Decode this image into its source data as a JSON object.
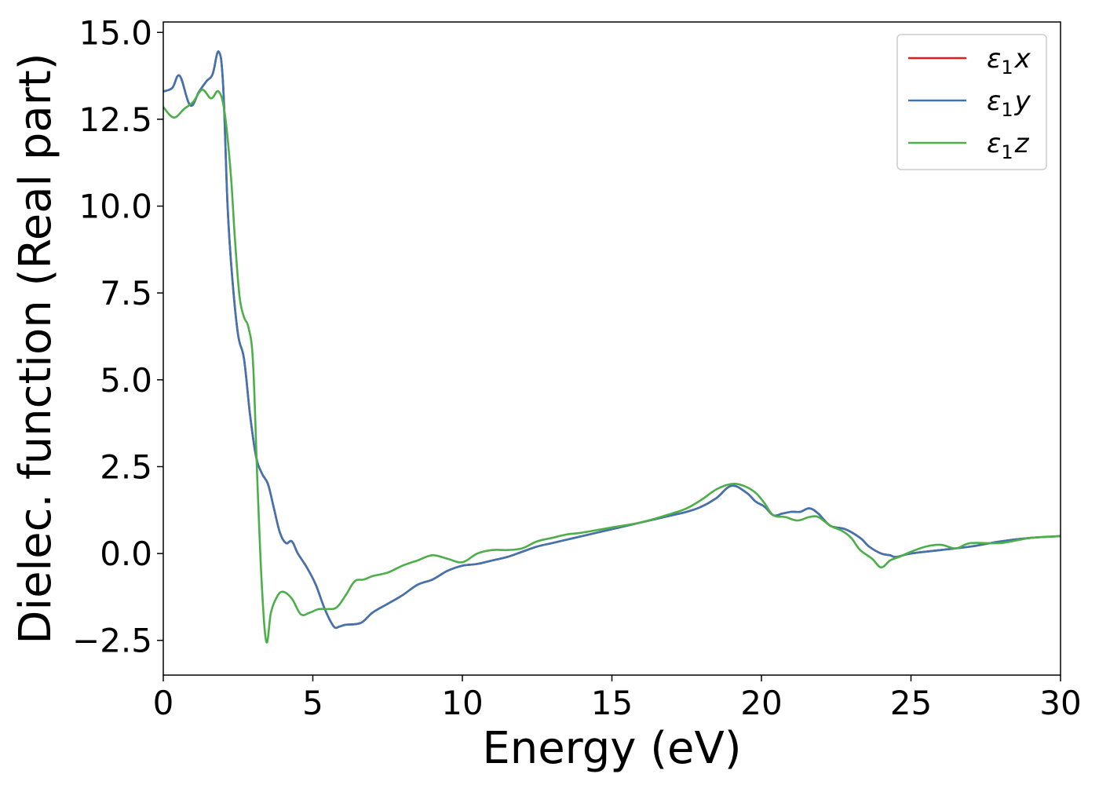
{
  "chart_data": {
    "type": "line",
    "title": "",
    "xlabel": "Energy (eV)",
    "ylabel": "Dielec. function (Real part)",
    "xlim": [
      0,
      30
    ],
    "ylim": [
      -3.5,
      15.3
    ],
    "xticks": [
      0,
      5,
      10,
      15,
      20,
      25,
      30
    ],
    "xtick_labels": [
      "0",
      "5",
      "10",
      "15",
      "20",
      "25",
      "30"
    ],
    "yticks": [
      -2.5,
      0.0,
      2.5,
      5.0,
      7.5,
      10.0,
      12.5,
      15.0
    ],
    "ytick_labels": [
      "−2.5",
      "0.0",
      "2.5",
      "5.0",
      "7.5",
      "10.0",
      "12.5",
      "15.0"
    ],
    "grid": false,
    "legend_position": "top-right",
    "series": [
      {
        "name_base": "ε",
        "name_sub": "1",
        "name_tail": "x",
        "color": "#e41a1c",
        "x": [
          0,
          0.3,
          0.55,
          0.9,
          1.2,
          1.45,
          1.65,
          1.85,
          2.0,
          2.15,
          2.3,
          2.5,
          2.7,
          2.9,
          3.1,
          3.3,
          3.5,
          3.7,
          3.9,
          4.1,
          4.3,
          4.5,
          4.8,
          5.1,
          5.4,
          5.7,
          5.9,
          6.1,
          6.6,
          7.0,
          7.5,
          8.0,
          8.5,
          9.0,
          9.5,
          10.0,
          10.5,
          11.0,
          11.5,
          12.0,
          12.5,
          13.0,
          13.5,
          14.0,
          15.0,
          16.0,
          17.0,
          17.5,
          18.0,
          18.5,
          19.0,
          19.5,
          19.8,
          20.1,
          20.4,
          20.7,
          21.0,
          21.3,
          21.6,
          21.9,
          22.3,
          22.8,
          23.3,
          23.6,
          24.0,
          24.3,
          24.5,
          25.0,
          26.0,
          27.0,
          28.0,
          29.0,
          30.0
        ],
        "y": [
          13.3,
          13.4,
          13.75,
          12.9,
          13.3,
          13.6,
          13.8,
          14.45,
          13.5,
          10.0,
          8.0,
          6.3,
          5.6,
          4.0,
          2.8,
          2.3,
          2.0,
          1.3,
          0.6,
          0.3,
          0.35,
          0.0,
          -0.4,
          -0.9,
          -1.6,
          -2.1,
          -2.1,
          -2.05,
          -2.0,
          -1.7,
          -1.45,
          -1.2,
          -0.9,
          -0.75,
          -0.5,
          -0.35,
          -0.3,
          -0.2,
          -0.1,
          0.05,
          0.2,
          0.3,
          0.4,
          0.5,
          0.7,
          0.9,
          1.1,
          1.2,
          1.35,
          1.6,
          1.95,
          1.75,
          1.5,
          1.35,
          1.1,
          1.15,
          1.2,
          1.2,
          1.3,
          1.15,
          0.8,
          0.7,
          0.45,
          0.2,
          0.0,
          -0.05,
          -0.1,
          0.0,
          0.1,
          0.2,
          0.35,
          0.45,
          0.5
        ]
      },
      {
        "name_base": "ε",
        "name_sub": "1",
        "name_tail": "y",
        "color": "#3f74b0",
        "x": [
          0,
          0.3,
          0.55,
          0.9,
          1.2,
          1.45,
          1.65,
          1.85,
          2.0,
          2.15,
          2.3,
          2.5,
          2.7,
          2.9,
          3.1,
          3.3,
          3.5,
          3.7,
          3.9,
          4.1,
          4.3,
          4.5,
          4.8,
          5.1,
          5.4,
          5.7,
          5.9,
          6.1,
          6.6,
          7.0,
          7.5,
          8.0,
          8.5,
          9.0,
          9.5,
          10.0,
          10.5,
          11.0,
          11.5,
          12.0,
          12.5,
          13.0,
          13.5,
          14.0,
          15.0,
          16.0,
          17.0,
          17.5,
          18.0,
          18.5,
          19.0,
          19.5,
          19.8,
          20.1,
          20.4,
          20.7,
          21.0,
          21.3,
          21.6,
          21.9,
          22.3,
          22.8,
          23.3,
          23.6,
          24.0,
          24.3,
          24.5,
          25.0,
          26.0,
          27.0,
          28.0,
          29.0,
          30.0
        ],
        "y": [
          13.3,
          13.4,
          13.75,
          12.9,
          13.3,
          13.6,
          13.8,
          14.45,
          13.5,
          10.0,
          8.0,
          6.3,
          5.6,
          4.0,
          2.8,
          2.3,
          2.0,
          1.3,
          0.6,
          0.3,
          0.35,
          0.0,
          -0.4,
          -0.9,
          -1.6,
          -2.1,
          -2.1,
          -2.05,
          -2.0,
          -1.7,
          -1.45,
          -1.2,
          -0.9,
          -0.75,
          -0.5,
          -0.35,
          -0.3,
          -0.2,
          -0.1,
          0.05,
          0.2,
          0.3,
          0.4,
          0.5,
          0.7,
          0.9,
          1.1,
          1.2,
          1.35,
          1.6,
          1.95,
          1.75,
          1.5,
          1.35,
          1.1,
          1.15,
          1.2,
          1.2,
          1.3,
          1.15,
          0.8,
          0.7,
          0.45,
          0.2,
          0.0,
          -0.05,
          -0.1,
          0.0,
          0.1,
          0.2,
          0.35,
          0.45,
          0.5
        ]
      },
      {
        "name_base": "ε",
        "name_sub": "1",
        "name_tail": "z",
        "color": "#4daf4a",
        "x": [
          0,
          0.35,
          0.7,
          1.0,
          1.3,
          1.6,
          1.85,
          2.05,
          2.25,
          2.4,
          2.55,
          2.7,
          2.85,
          3.0,
          3.15,
          3.3,
          3.45,
          3.6,
          3.8,
          4.0,
          4.3,
          4.6,
          4.9,
          5.2,
          5.5,
          5.8,
          6.1,
          6.4,
          6.7,
          7.0,
          7.5,
          8.0,
          8.5,
          9.0,
          9.5,
          10.0,
          10.5,
          11.0,
          11.5,
          12.0,
          12.5,
          13.0,
          13.5,
          14.0,
          15.0,
          16.0,
          17.0,
          17.5,
          18.0,
          18.5,
          19.0,
          19.4,
          19.8,
          20.1,
          20.4,
          20.8,
          21.2,
          21.6,
          21.9,
          22.3,
          22.7,
          23.0,
          23.3,
          23.7,
          24.0,
          24.3,
          24.6,
          25.0,
          25.5,
          26.0,
          26.5,
          27.0,
          28.0,
          29.0,
          30.0
        ],
        "y": [
          12.85,
          12.55,
          12.8,
          13.0,
          13.35,
          13.1,
          13.3,
          12.7,
          11.0,
          9.0,
          7.4,
          6.8,
          6.5,
          5.5,
          2.0,
          -1.0,
          -2.55,
          -1.7,
          -1.25,
          -1.1,
          -1.3,
          -1.75,
          -1.7,
          -1.6,
          -1.6,
          -1.55,
          -1.2,
          -0.8,
          -0.75,
          -0.65,
          -0.55,
          -0.35,
          -0.2,
          -0.05,
          -0.15,
          -0.25,
          0.0,
          0.1,
          0.1,
          0.15,
          0.35,
          0.45,
          0.55,
          0.6,
          0.75,
          0.9,
          1.15,
          1.3,
          1.55,
          1.85,
          2.0,
          1.95,
          1.75,
          1.45,
          1.1,
          1.05,
          0.95,
          1.05,
          1.05,
          0.8,
          0.65,
          0.45,
          0.1,
          -0.15,
          -0.4,
          -0.2,
          -0.1,
          0.05,
          0.2,
          0.25,
          0.15,
          0.3,
          0.3,
          0.45,
          0.5
        ]
      }
    ]
  }
}
